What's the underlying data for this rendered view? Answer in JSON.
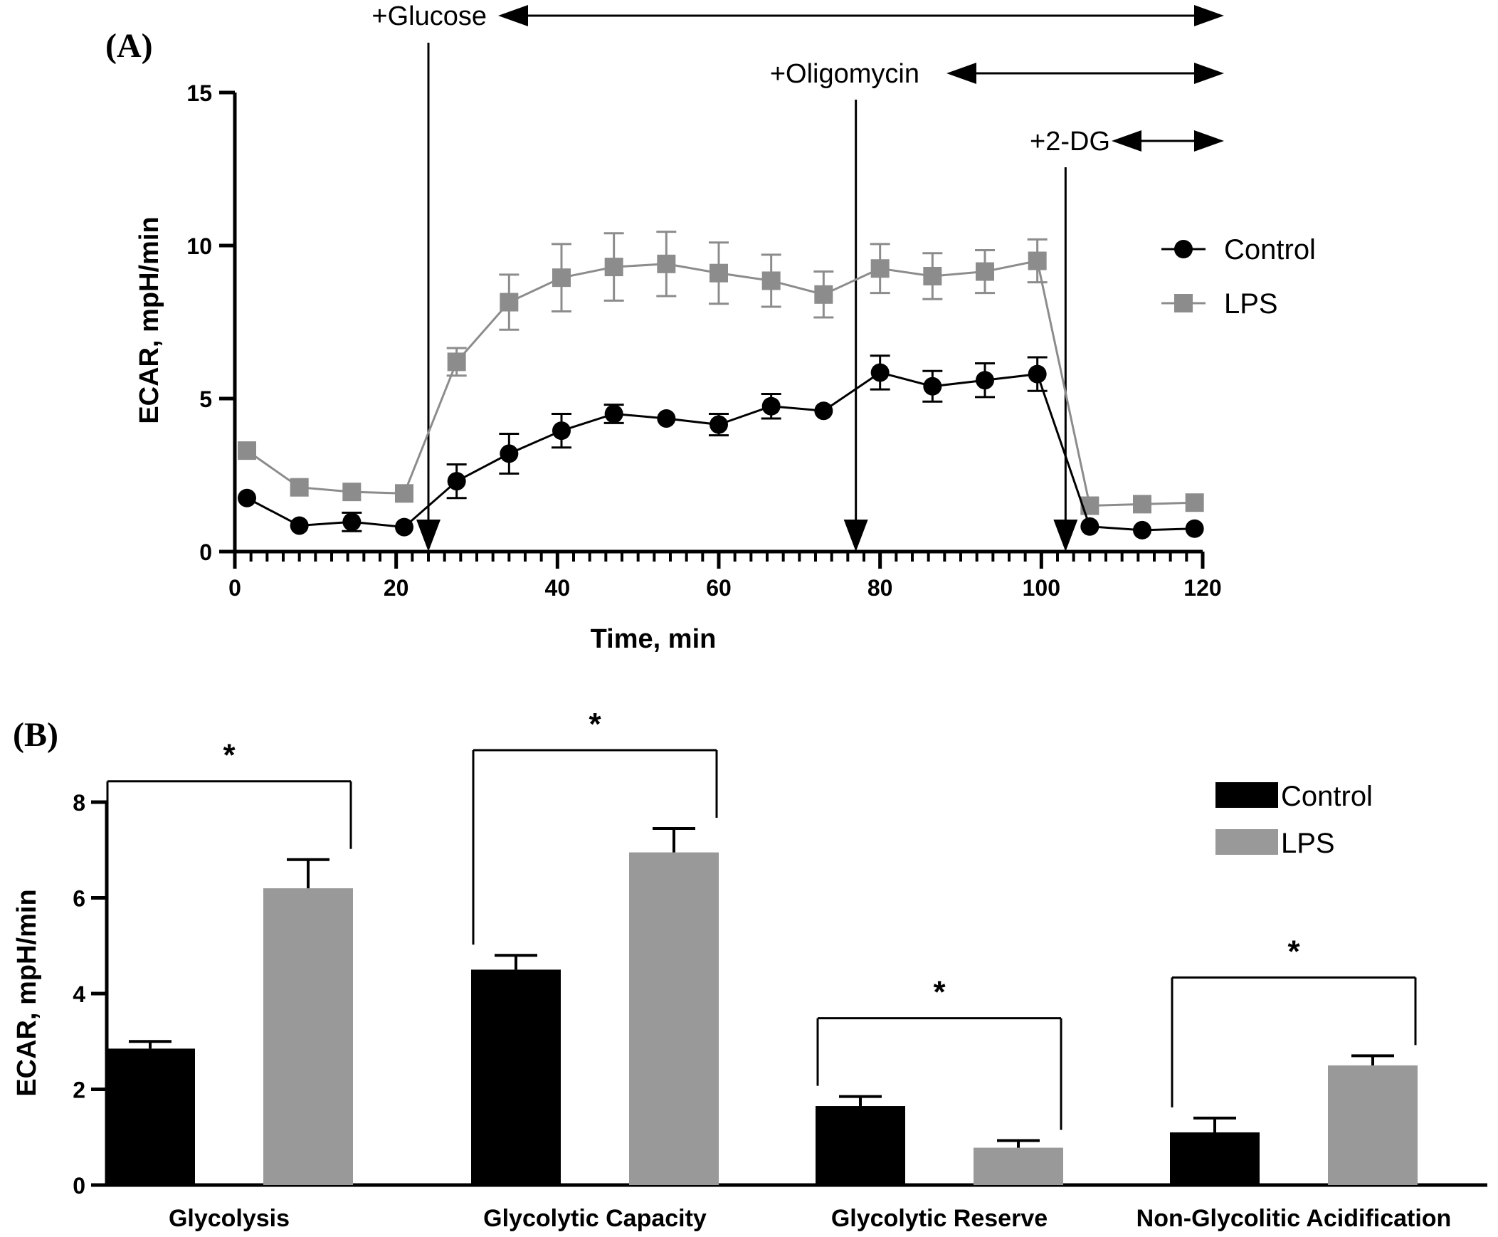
{
  "chart_data": [
    {
      "panel": "(A)",
      "type": "line",
      "xlabel": "Time, min",
      "ylabel": "ECAR, mpH/min",
      "xlim": [
        0,
        120
      ],
      "ylim": [
        0,
        15
      ],
      "xticks": [
        0,
        20,
        40,
        60,
        80,
        100,
        120
      ],
      "yticks": [
        0,
        5,
        10,
        15
      ],
      "legend_position": "right",
      "annotations": [
        {
          "text": "+Glucose",
          "x": 24
        },
        {
          "text": "+Oligomycin",
          "x": 77
        },
        {
          "text": "+2-DG",
          "x": 103
        }
      ],
      "series": [
        {
          "name": "Control",
          "color": "#000000",
          "marker": "circle",
          "x": [
            1.5,
            8,
            14.5,
            21,
            27.5,
            34,
            40.5,
            47,
            53.5,
            60,
            66.5,
            73,
            80,
            86.5,
            93,
            99.5,
            106,
            112.5,
            119
          ],
          "y": [
            1.75,
            0.85,
            0.97,
            0.8,
            2.3,
            3.2,
            3.95,
            4.5,
            4.35,
            4.15,
            4.75,
            4.6,
            5.85,
            5.4,
            5.6,
            5.8,
            0.82,
            0.7,
            0.75
          ],
          "err": [
            0,
            0,
            0.3,
            0,
            0.55,
            0.65,
            0.55,
            0.3,
            0,
            0.35,
            0.4,
            0,
            0.55,
            0.5,
            0.55,
            0.55,
            0,
            0,
            0
          ]
        },
        {
          "name": "LPS",
          "color": "#8c8c8c",
          "marker": "square",
          "x": [
            1.5,
            8,
            14.5,
            21,
            27.5,
            34,
            40.5,
            47,
            53.5,
            60,
            66.5,
            73,
            80,
            86.5,
            93,
            99.5,
            106,
            112.5,
            119
          ],
          "y": [
            3.3,
            2.1,
            1.95,
            1.9,
            6.2,
            8.15,
            8.95,
            9.3,
            9.4,
            9.1,
            8.85,
            8.4,
            9.25,
            9.0,
            9.15,
            9.5,
            1.5,
            1.55,
            1.6
          ],
          "err": [
            0,
            0,
            0,
            0,
            0.45,
            0.9,
            1.1,
            1.1,
            1.05,
            1.0,
            0.85,
            0.75,
            0.8,
            0.75,
            0.7,
            0.7,
            0,
            0,
            0
          ]
        }
      ]
    },
    {
      "panel": "(B)",
      "type": "bar",
      "ylabel": "ECAR, mpH/min",
      "ylim": [
        0,
        8
      ],
      "yticks": [
        0,
        2,
        4,
        6,
        8
      ],
      "legend_position": "top-right",
      "categories": [
        "Glycolysis",
        "Glycolytic Capacity",
        "Glycolytic Reserve",
        "Non-Glycolitic Acidification"
      ],
      "series": [
        {
          "name": "Control",
          "color": "#000000",
          "values": [
            2.85,
            4.5,
            1.65,
            1.1
          ],
          "err": [
            0.15,
            0.3,
            0.2,
            0.3
          ]
        },
        {
          "name": "LPS",
          "color": "#999999",
          "values": [
            6.2,
            6.95,
            0.78,
            2.5
          ],
          "err": [
            0.6,
            0.5,
            0.15,
            0.2
          ]
        }
      ],
      "significance": [
        {
          "category": "Glycolysis",
          "label": "*"
        },
        {
          "category": "Glycolytic Capacity",
          "label": "*"
        },
        {
          "category": "Glycolytic Reserve",
          "label": "*"
        },
        {
          "category": "Non-Glycolitic Acidification",
          "label": "*"
        }
      ]
    }
  ]
}
